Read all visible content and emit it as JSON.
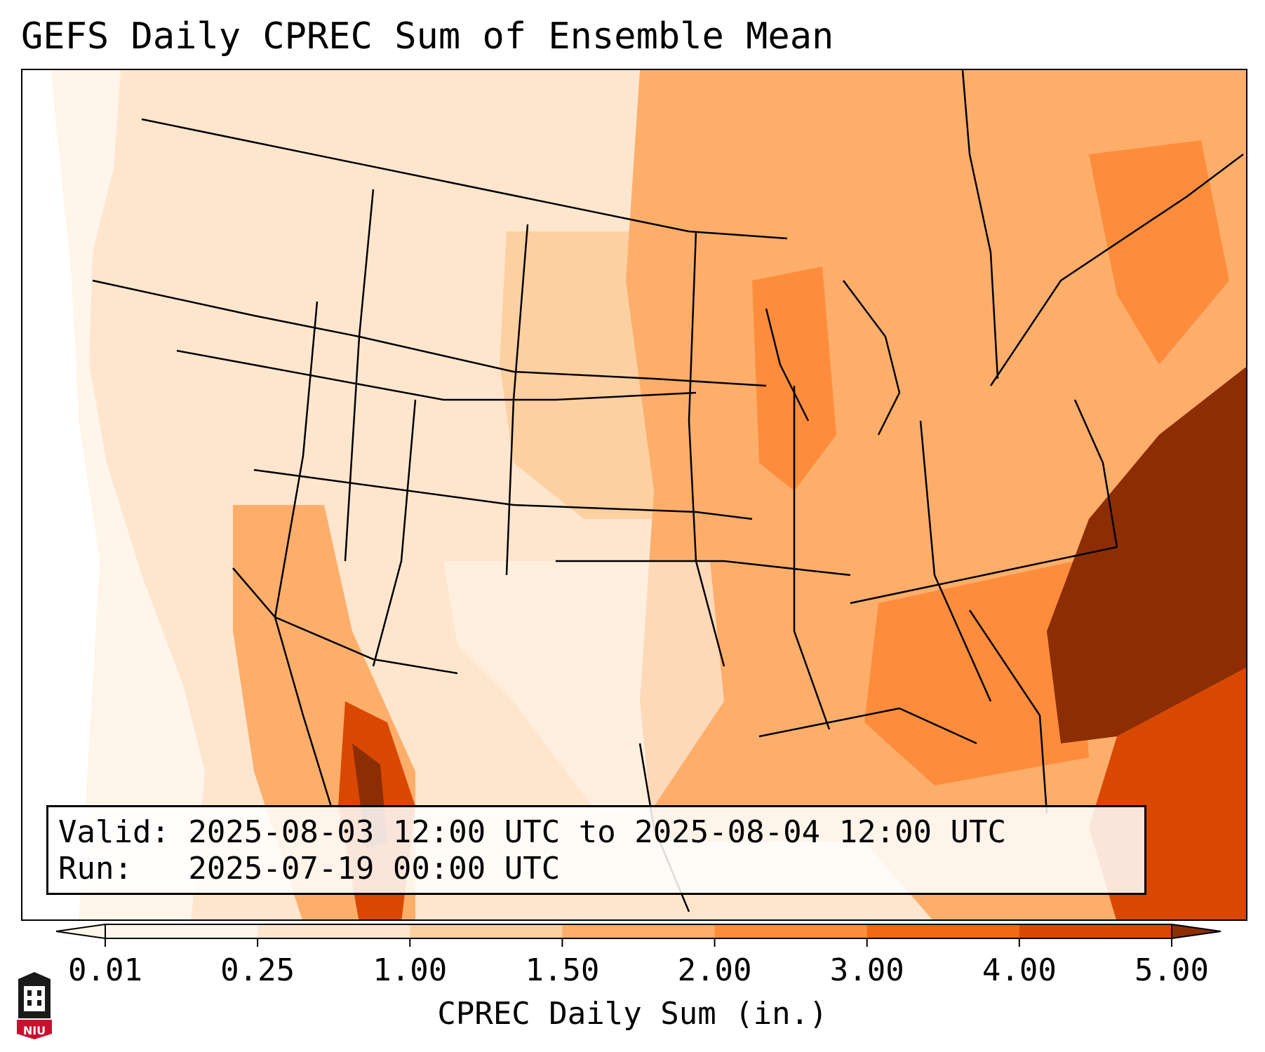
{
  "title": "GEFS Daily CPREC Sum of Ensemble Mean",
  "info": {
    "valid": "Valid: 2025-08-03 12:00 UTC to 2025-08-04 12:00 UTC",
    "run": "Run:   2025-07-19 00:00 UTC"
  },
  "colorbar": {
    "label": "CPREC Daily Sum (in.)",
    "ticks": [
      "0.01",
      "0.25",
      "1.00",
      "1.50",
      "2.00",
      "3.00",
      "4.00",
      "5.00"
    ],
    "colors": [
      "#fff5eb",
      "#fee6ce",
      "#fdd0a2",
      "#fdae6b",
      "#fd8d3c",
      "#f16913",
      "#d94801",
      "#8c2d04"
    ]
  },
  "logo_text": "NIU"
}
